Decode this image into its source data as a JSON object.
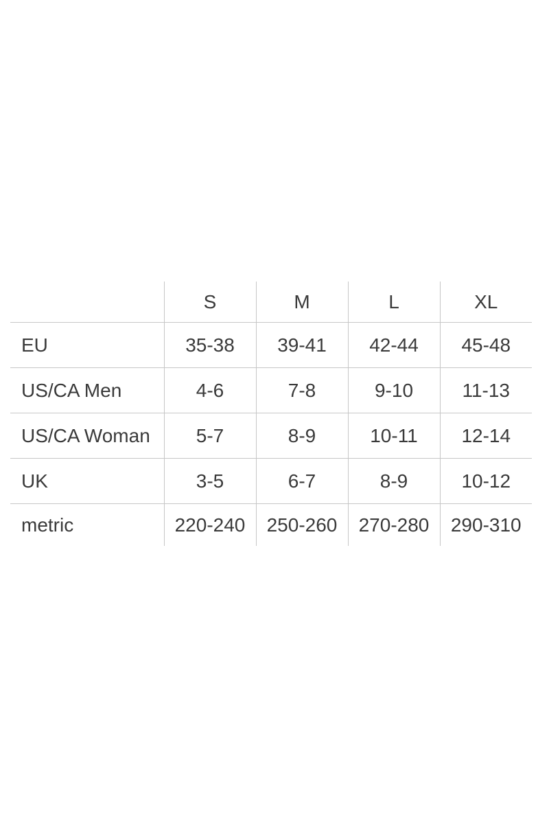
{
  "colors": {
    "background": "#ffffff",
    "text": "#3a3a3a",
    "grid_border": "#c6c6c6"
  },
  "chart_data": {
    "type": "table",
    "title": "",
    "columns": [
      "",
      "S",
      "M",
      "L",
      "XL"
    ],
    "rows": [
      {
        "label": "EU",
        "values": [
          "35-38",
          "39-41",
          "42-44",
          "45-48"
        ]
      },
      {
        "label": "US/CA Men",
        "values": [
          "4-6",
          "7-8",
          "9-10",
          "11-13"
        ]
      },
      {
        "label": "US/CA Woman",
        "values": [
          "5-7",
          "8-9",
          "10-11",
          "12-14"
        ]
      },
      {
        "label": "UK",
        "values": [
          "3-5",
          "6-7",
          "8-9",
          "10-12"
        ]
      },
      {
        "label": "metric",
        "values": [
          "220-240",
          "250-260",
          "270-280",
          "290-310"
        ]
      }
    ],
    "layout": {
      "grid": "internal-lines-only",
      "header_row": true,
      "first_column_alignment": "left",
      "value_alignment": "center"
    }
  }
}
